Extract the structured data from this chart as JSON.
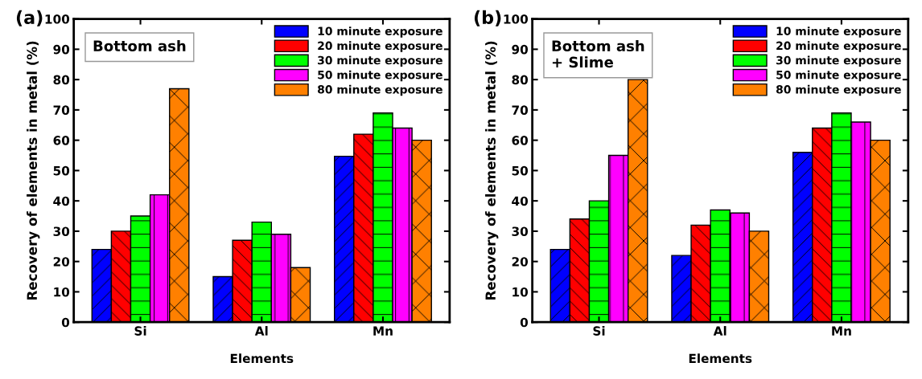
{
  "chart_data": [
    {
      "type": "bar",
      "title": "(a)",
      "xlabel": "Elements",
      "ylabel": "Recovery of elements in metal (%)",
      "categories": [
        "Si",
        "Al",
        "Mn"
      ],
      "ylim": [
        0,
        100
      ],
      "yticks": [
        0,
        10,
        20,
        30,
        40,
        50,
        60,
        70,
        80,
        90,
        100
      ],
      "grid": false,
      "legend": "top right",
      "annotations": [
        "Bottom ash"
      ],
      "series": [
        {
          "name": "10 minute exposure",
          "color": "#0000ff",
          "values": [
            24,
            15,
            54.7
          ]
        },
        {
          "name": "20 minute exposure",
          "color": "#ff0000",
          "values": [
            30,
            27,
            62
          ]
        },
        {
          "name": "30 minute exposure",
          "color": "#00ff00",
          "values": [
            35,
            33,
            69
          ]
        },
        {
          "name": "50 minute exposure",
          "color": "#ff00ff",
          "values": [
            42,
            29,
            64
          ]
        },
        {
          "name": "80 minute exposure",
          "color": "#ff8000",
          "values": [
            77,
            18,
            60
          ]
        }
      ]
    },
    {
      "type": "bar",
      "title": "(b)",
      "xlabel": "Elements",
      "ylabel": "Recovery of elements in metal (%)",
      "categories": [
        "Si",
        "Al",
        "Mn"
      ],
      "ylim": [
        0,
        100
      ],
      "yticks": [
        0,
        10,
        20,
        30,
        40,
        50,
        60,
        70,
        80,
        90,
        100
      ],
      "grid": false,
      "legend": "top right",
      "annotations": [
        "Bottom ash\n+ Slime"
      ],
      "series": [
        {
          "name": "10 minute exposure",
          "color": "#0000ff",
          "values": [
            24,
            22,
            56
          ]
        },
        {
          "name": "20 minute exposure",
          "color": "#ff0000",
          "values": [
            34,
            32,
            64
          ]
        },
        {
          "name": "30 minute exposure",
          "color": "#00ff00",
          "values": [
            40,
            37,
            69
          ]
        },
        {
          "name": "50 minute exposure",
          "color": "#ff00ff",
          "values": [
            55,
            36,
            66
          ]
        },
        {
          "name": "80 minute exposure",
          "color": "#ff8000",
          "values": [
            80,
            30,
            60
          ]
        }
      ]
    }
  ]
}
